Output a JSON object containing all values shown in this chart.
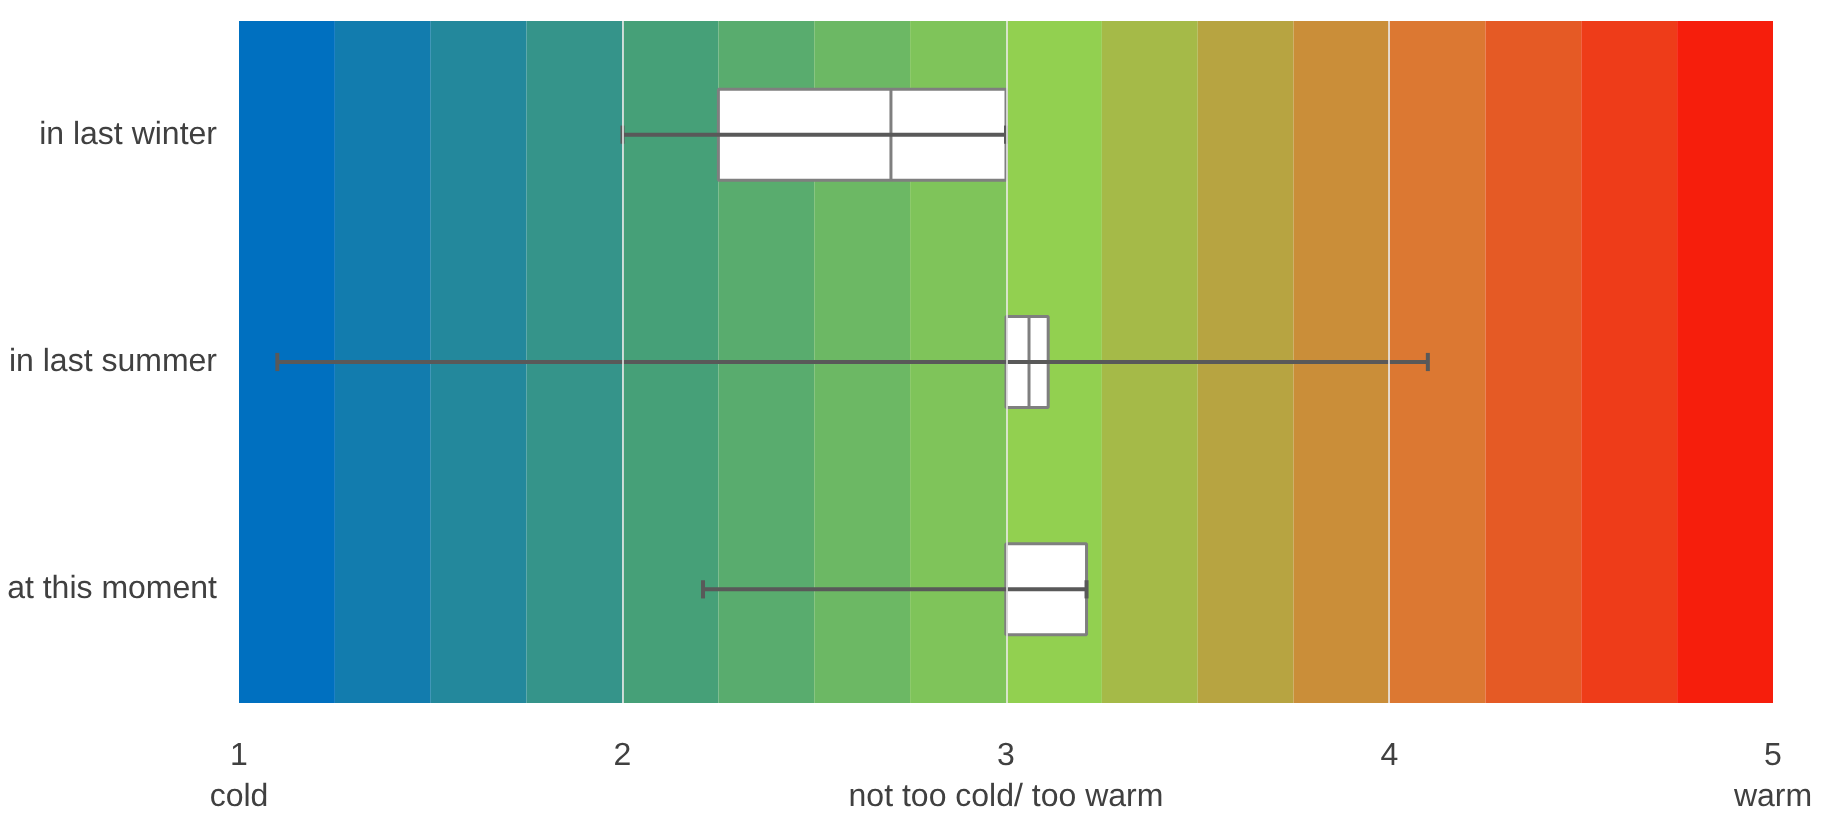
{
  "chart_data": {
    "type": "box",
    "orientation": "horizontal",
    "categories": [
      "in last winter",
      "in last summer",
      "at this moment"
    ],
    "boxes": [
      {
        "low": 2.0,
        "q1": 2.25,
        "median": 2.7,
        "q3": 3.0,
        "high": 3.0
      },
      {
        "low": 1.1,
        "q1": 3.0,
        "median": 3.06,
        "q3": 3.11,
        "high": 4.1
      },
      {
        "low": 2.21,
        "q1": 3.0,
        "median": 3.0,
        "q3": 3.21,
        "high": 3.21
      }
    ],
    "color": "#ffffff",
    "xlim": [
      1,
      5
    ],
    "xticks": [
      {
        "value": 1,
        "label": "1\ncold"
      },
      2,
      {
        "value": 3,
        "label": "3\nnot too cold/ too warm"
      },
      4,
      {
        "value": 5,
        "label": "5\nwarm"
      }
    ],
    "grid": "x",
    "bands": [
      {
        "axis": "x",
        "from": 1.0,
        "to": 1.25,
        "color": "#0070c0"
      },
      {
        "axis": "x",
        "from": 1.25,
        "to": 1.5,
        "color": "#127cae"
      },
      {
        "axis": "x",
        "from": 1.5,
        "to": 1.75,
        "color": "#23889c"
      },
      {
        "axis": "x",
        "from": 1.75,
        "to": 2.0,
        "color": "#35948a"
      },
      {
        "axis": "x",
        "from": 2.0,
        "to": 2.25,
        "color": "#46a078"
      },
      {
        "axis": "x",
        "from": 2.25,
        "to": 2.5,
        "color": "#59ac6e"
      },
      {
        "axis": "x",
        "from": 2.5,
        "to": 2.75,
        "color": "#6cb864"
      },
      {
        "axis": "x",
        "from": 2.75,
        "to": 3.0,
        "color": "#7fc45a"
      },
      {
        "axis": "x",
        "from": 3.0,
        "to": 3.25,
        "color": "#92d050"
      },
      {
        "axis": "x",
        "from": 3.25,
        "to": 3.5,
        "color": "#a5ba48"
      },
      {
        "axis": "x",
        "from": 3.5,
        "to": 3.75,
        "color": "#b7a441"
      },
      {
        "axis": "x",
        "from": 3.75,
        "to": 4.0,
        "color": "#ca8e39"
      },
      {
        "axis": "x",
        "from": 4.0,
        "to": 4.25,
        "color": "#dc7832"
      },
      {
        "axis": "x",
        "from": 4.25,
        "to": 4.5,
        "color": "#e55a25"
      },
      {
        "axis": "x",
        "from": 4.5,
        "to": 4.75,
        "color": "#ee3c19"
      },
      {
        "axis": "x",
        "from": 4.75,
        "to": 5.0,
        "color": "#f61e0c"
      }
    ]
  }
}
